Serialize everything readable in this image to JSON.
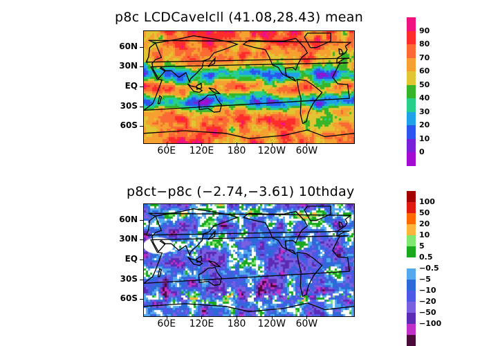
{
  "chart_data": [
    {
      "type": "heatmap",
      "title": "p8c LCDCavelcll (41.08,28.43) mean",
      "xticks": [
        "60E",
        "120E",
        "180",
        "120W",
        "60W"
      ],
      "yticks": [
        "60N",
        "30N",
        "EQ",
        "30S",
        "60S"
      ],
      "colorbar": {
        "labels": [
          "90",
          "80",
          "70",
          "60",
          "50",
          "40",
          "30",
          "20",
          "10",
          "0"
        ],
        "colors": [
          "#f0127f",
          "#ff2c2c",
          "#fb6a35",
          "#f5a030",
          "#e2c533",
          "#36b52a",
          "#26d08a",
          "#1fa2e8",
          "#2c55ee",
          "#7a1fd8",
          "#a30bd2"
        ]
      }
    },
    {
      "type": "heatmap",
      "title": "p8ct−p8c (−2.74,−3.61) 10thday",
      "xticks": [
        "60E",
        "120E",
        "180",
        "120W",
        "60W"
      ],
      "yticks": [
        "60N",
        "30N",
        "EQ",
        "30S",
        "60S"
      ],
      "colorbar": {
        "labels": [
          "100",
          "50",
          "20",
          "10",
          "5",
          "0.5",
          "−0.5",
          "−5",
          "−10",
          "−20",
          "−50",
          "−100"
        ],
        "colors": [
          "#a30000",
          "#e01a10",
          "#ff6a00",
          "#ffb43c",
          "#80e870",
          "#1aa81e",
          "#ffffff",
          "#54a8ee",
          "#2c6ad8",
          "#4e58e6",
          "#7860e0",
          "#5b2bb5",
          "#c030c8",
          "#4a0a3a"
        ]
      }
    }
  ]
}
